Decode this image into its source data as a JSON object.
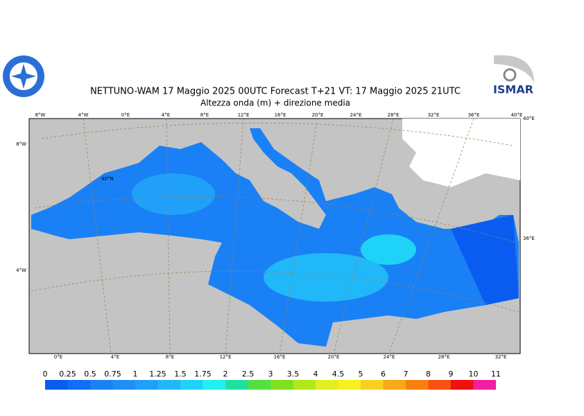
{
  "header": {
    "title": "NETTUNO-WAM  17   Maggio  2025 00UTC Forecast T+21 VT: 17   Maggio  2025 21UTC",
    "subtitle": "Altezza onda (m) + direzione media",
    "logo_right": "ISMAR"
  },
  "map": {
    "top_labels": [
      "8°W",
      "4°W",
      "0°E",
      "4°E",
      "8°E",
      "12°E",
      "16°E",
      "20°E",
      "24°E",
      "28°E",
      "32°E",
      "36°E",
      "40°E"
    ],
    "bottom_labels": [
      "0°E",
      "4°E",
      "8°E",
      "12°E",
      "16°E",
      "20°E",
      "24°E",
      "28°E",
      "32°E"
    ],
    "left_labels": [
      "8°W",
      "4°W"
    ],
    "right_labels": [
      "40°E",
      "36°E"
    ],
    "inner_labels": [
      "40°N"
    ]
  },
  "colorbar": {
    "levels": [
      0,
      0.25,
      0.5,
      0.75,
      1,
      1.25,
      1.5,
      1.75,
      2,
      2.5,
      3,
      3.5,
      4,
      4.5,
      5,
      6,
      7,
      8,
      9,
      10,
      11
    ],
    "colors": [
      "#0a5cf0",
      "#0f6ef5",
      "#1a80f5",
      "#1f8ff5",
      "#20a0f8",
      "#20b8f8",
      "#1ed2f8",
      "#22f0f0",
      "#20e0a0",
      "#50e040",
      "#80e020",
      "#b0e818",
      "#e0f020",
      "#f8f020",
      "#f8d020",
      "#f8a818",
      "#f88010",
      "#f85010",
      "#f01010",
      "#f020a0"
    ]
  }
}
